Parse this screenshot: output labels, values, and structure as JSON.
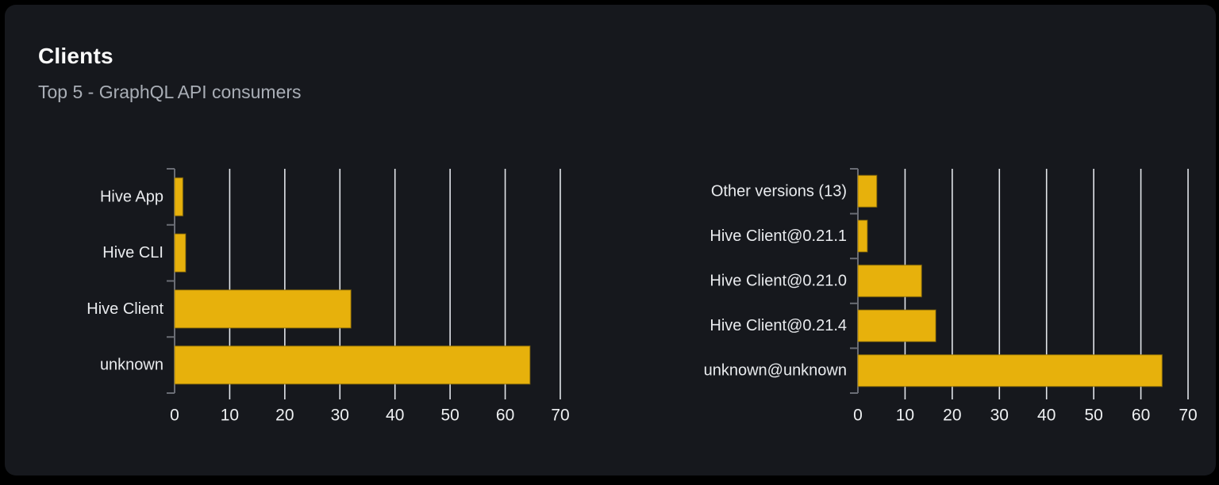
{
  "header": {
    "title": "Clients",
    "subtitle": "Top 5 - GraphQL API consumers"
  },
  "colors": {
    "page_background": "#000000",
    "card_background": "#16181d",
    "bar_fill": "#e7b10c",
    "bar_border": "#8a6c08",
    "gridline": "#e2e5ea",
    "axis": "#6a6d75",
    "category_label": "#e9ebee",
    "tick_label": "#eef0f2",
    "title": "#fafafa",
    "subtitle": "#a9aeb6"
  },
  "chart_data": [
    {
      "type": "bar",
      "orientation": "horizontal",
      "title": "",
      "categories": [
        "Hive App",
        "Hive CLI",
        "Hive Client",
        "unknown"
      ],
      "values": [
        1.5,
        2,
        32,
        64.5
      ],
      "xlabel": "",
      "ylabel": "",
      "xlim": [
        0,
        70
      ],
      "xticks": [
        0,
        10,
        20,
        30,
        40,
        50,
        60,
        70
      ],
      "grid": "vertical",
      "legend": "none"
    },
    {
      "type": "bar",
      "orientation": "horizontal",
      "title": "",
      "categories": [
        "Other versions (13)",
        "Hive Client@0.21.1",
        "Hive Client@0.21.0",
        "Hive Client@0.21.4",
        "unknown@unknown"
      ],
      "values": [
        4,
        2,
        13.5,
        16.5,
        64.5
      ],
      "xlabel": "",
      "ylabel": "",
      "xlim": [
        0,
        70
      ],
      "xticks": [
        0,
        10,
        20,
        30,
        40,
        50,
        60,
        70
      ],
      "grid": "vertical",
      "legend": "none"
    }
  ]
}
